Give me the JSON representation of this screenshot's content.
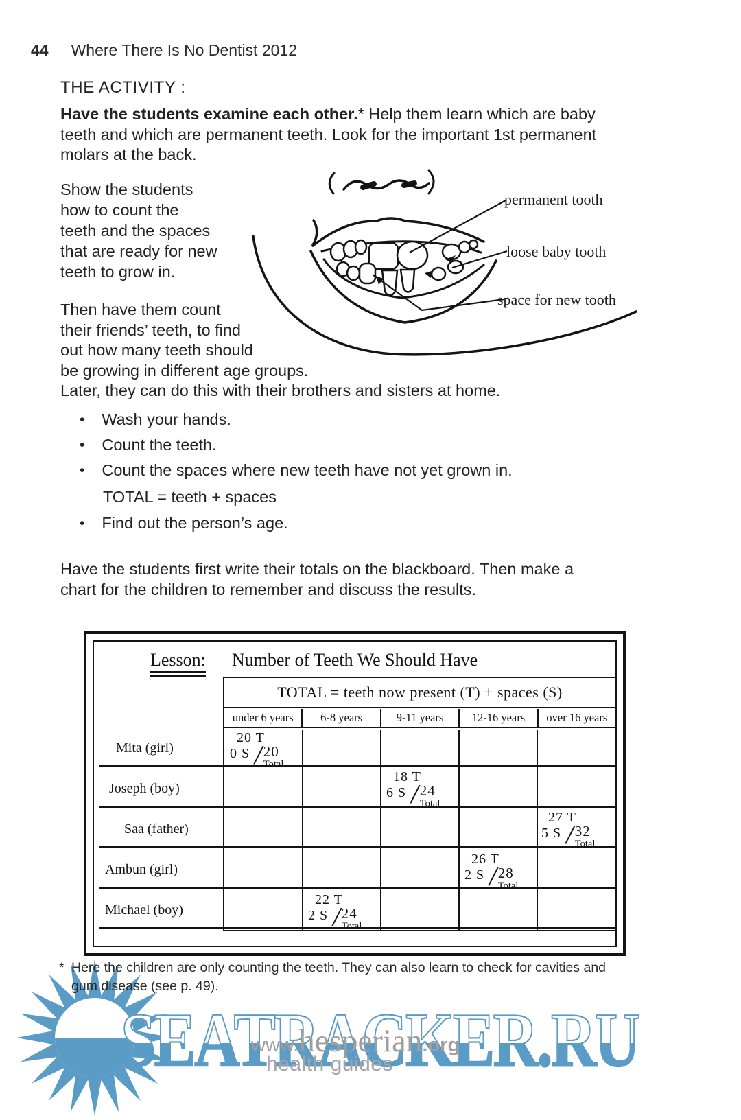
{
  "header": {
    "page_number": "44",
    "book_title": "Where There Is No Dentist 2012"
  },
  "activity": {
    "heading": "THE ACTIVITY :",
    "intro": {
      "bold": "Have the students examine each other.",
      "star": "*",
      "line1_rest": " Help them learn which are baby",
      "line2": "teeth and which are permanent teeth. Look for the important 1st permanent",
      "line3": "molars at the back."
    },
    "show_para_lines": [
      "Show the students",
      "how to count the",
      "teeth and the spaces",
      "that are ready for new",
      "teeth to grow in."
    ],
    "count_para_lines": [
      "Then have them count",
      "their friends’ teeth, to find",
      "out how many teeth should",
      "be growing in different age groups.",
      "Later, they can do this with their brothers and sisters at home."
    ],
    "bullet_char": "•",
    "bullets": [
      "Wash your hands.",
      "Count the teeth.",
      "Count the spaces where new teeth have not yet grown in."
    ],
    "formula": "TOTAL = teeth + spaces",
    "bullet_last": "Find out the person’s age.",
    "chart_para_lines": [
      "Have the students first write their totals on the blackboard. Then make a",
      "chart for the children to remember and discuss the results."
    ]
  },
  "illustration": {
    "labels": {
      "permanent": "permanent tooth",
      "loose": "loose baby tooth",
      "space": "space for new tooth"
    }
  },
  "blackboard": {
    "lesson_label": "Lesson:",
    "lesson_title": "Number of Teeth We Should Have",
    "table_title": "TOTAL = teeth now present (T) + spaces (S)",
    "columns": [
      "under 6 years",
      "6-8 years",
      "9-11 years",
      "12-16 years",
      "over 16 years"
    ],
    "slash": "/",
    "total_label": "Total",
    "rows": [
      {
        "name": "Mita (girl)",
        "age_column": "under 6 years",
        "t": "20 T",
        "s": "0 S",
        "total": "20"
      },
      {
        "name": "Joseph (boy)",
        "age_column": "9-11 years",
        "t": "18 T",
        "s": "6 S",
        "total": "24"
      },
      {
        "name": "Saa (father)",
        "age_column": "over 16 years",
        "t": "27 T",
        "s": "5 S",
        "total": "32"
      },
      {
        "name": "Ambun (girl)",
        "age_column": "12-16 years",
        "t": "26 T",
        "s": "2 S",
        "total": "28"
      },
      {
        "name": "Michael (boy)",
        "age_column": "6-8 years",
        "t": "22 T",
        "s": "2 S",
        "total": "24"
      }
    ]
  },
  "footnote": {
    "star": "*",
    "line1": "Here the children are only counting the teeth. They can also learn to check for cavities and",
    "line2": "gum disease (see p. 49)."
  },
  "watermark": {
    "site": "SEATRACKER.RU",
    "url_prefix": "www.",
    "url_mid": "hesperian",
    "url_suffix": ".org",
    "tagline": "health guides",
    "blue": "#5b9cc6",
    "gray": "#9f9f9f"
  }
}
